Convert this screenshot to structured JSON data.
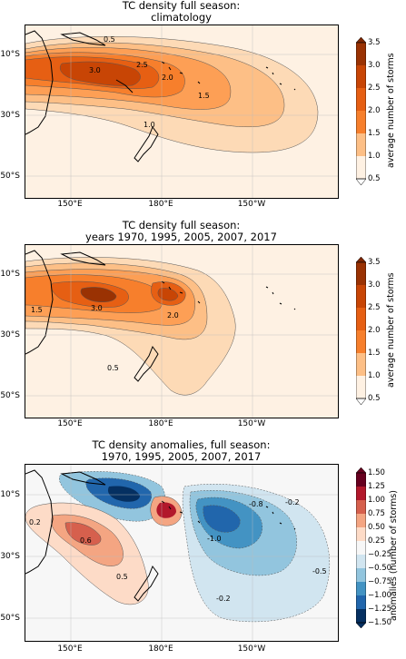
{
  "panels": [
    {
      "id": "climatology",
      "title_line1": "TC density full season:",
      "title_line2": "climatology",
      "lat_labels": [
        "10°S",
        "30°S",
        "50°S"
      ],
      "lon_labels": [
        "150°E",
        "180°E",
        "150°W"
      ],
      "contour_labels": [
        "0.5",
        "3.0",
        "2.5",
        "2.0",
        "1.5",
        "1.0"
      ],
      "colorbar_ticks": [
        "3.5",
        "3.0",
        "2.5",
        "2.0",
        "1.5",
        "1.0",
        "0.5"
      ],
      "colorbar_label": "average number of storms",
      "colors": [
        "#fef1e3",
        "#fddab6",
        "#fdbf86",
        "#fd9f55",
        "#f77f2c",
        "#e65f13",
        "#c84505",
        "#9a3203",
        "#7f2704"
      ]
    },
    {
      "id": "selected-years",
      "title_line1": "TC density full season:",
      "title_line2": "years 1970, 1995, 2005, 2007, 2017",
      "lat_labels": [
        "10°S",
        "30°S",
        "50°S"
      ],
      "lon_labels": [
        "150°E",
        "180°E",
        "150°W"
      ],
      "contour_labels": [
        "3.0",
        "1.5",
        "2.0",
        "0.5"
      ],
      "colorbar_ticks": [
        "3.5",
        "3.0",
        "2.5",
        "2.0",
        "1.5",
        "1.0",
        "0.5"
      ],
      "colorbar_label": "average number of storms"
    },
    {
      "id": "anomalies",
      "title_line1": "TC density anomalies, full season:",
      "title_line2": "1970, 1995, 2005, 2007, 2017",
      "lat_labels": [
        "10°S",
        "30°S",
        "50°S"
      ],
      "lon_labels": [
        "150°E",
        "180°E",
        "150°W"
      ],
      "contour_labels": [
        "0.2",
        "0.6",
        "0.5",
        "-0.8",
        "-0.2",
        "-1.0",
        "-0.5",
        "-0.2"
      ],
      "colorbar_ticks": [
        "1.50",
        "1.25",
        "1.00",
        "0.75",
        "0.50",
        "0.25",
        "−0.25",
        "−0.50",
        "−0.75",
        "−1.00",
        "−1.25",
        "−1.50"
      ],
      "colorbar_label": "anomalies (number of storms)",
      "colors": [
        "#67001f",
        "#b2182b",
        "#d6604d",
        "#f4a582",
        "#fddbc7",
        "#f7f7f7",
        "#d1e5f0",
        "#92c5de",
        "#4393c3",
        "#2166ac",
        "#053061"
      ]
    }
  ]
}
